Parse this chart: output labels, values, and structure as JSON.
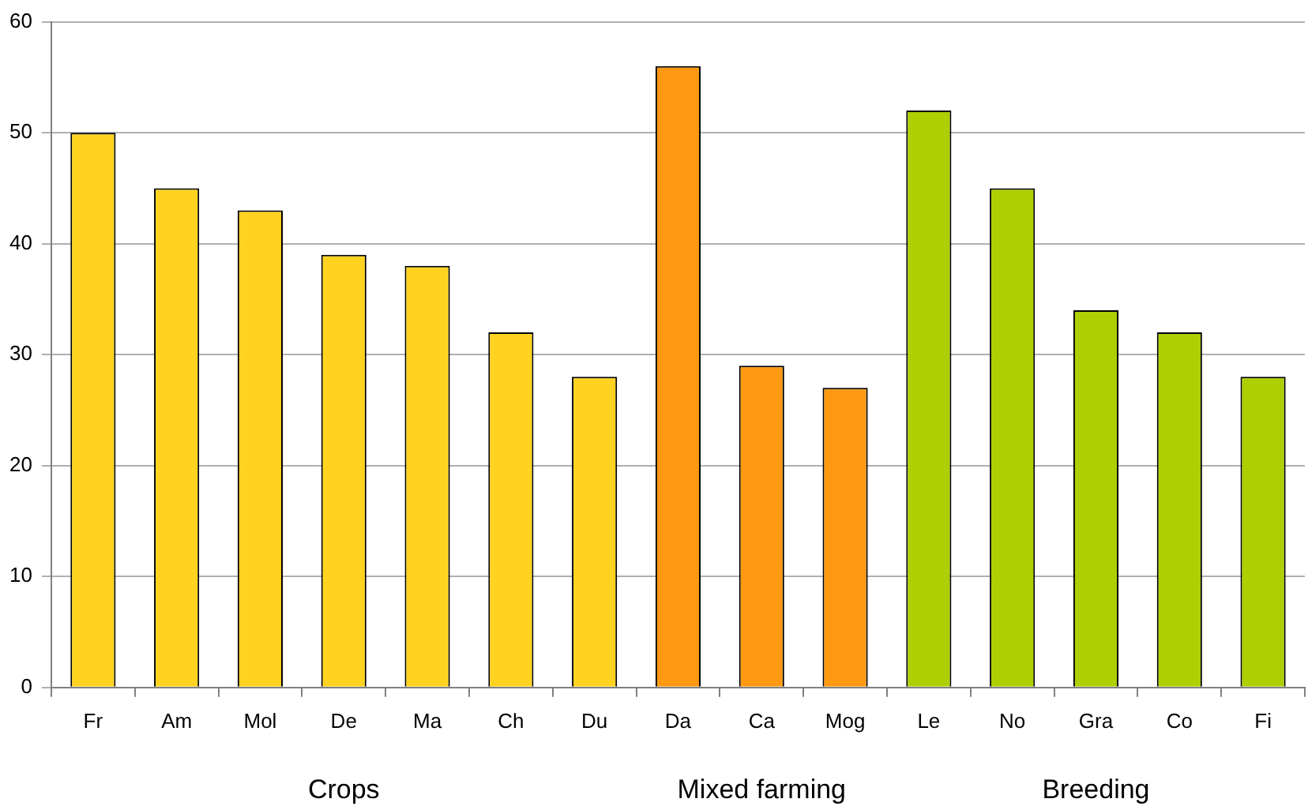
{
  "chart_data": {
    "type": "bar",
    "categories": [
      "Fr",
      "Am",
      "Mol",
      "De",
      "Ma",
      "Ch",
      "Du",
      "Da",
      "Ca",
      "Mog",
      "Le",
      "No",
      "Gra",
      "Co",
      "Fi"
    ],
    "values": [
      50,
      45,
      43,
      39,
      38,
      32,
      28,
      56,
      29,
      27,
      52,
      45,
      34,
      32,
      28
    ],
    "colors": [
      "#ffd320",
      "#ffd320",
      "#ffd320",
      "#ffd320",
      "#ffd320",
      "#ffd320",
      "#ffd320",
      "#ff9912",
      "#ff9912",
      "#ff9912",
      "#aecf00",
      "#aecf00",
      "#aecf00",
      "#aecf00",
      "#aecf00"
    ],
    "annotations": [
      "Crops",
      "Mixed farming",
      "Breeding"
    ],
    "ylim": [
      0,
      60
    ],
    "yticks": [
      0,
      10,
      20,
      30,
      40,
      50,
      60
    ],
    "grid": "y",
    "legend": false
  }
}
